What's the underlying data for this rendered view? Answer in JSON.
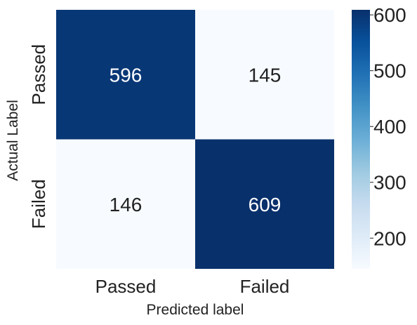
{
  "chart_data": {
    "type": "heatmap",
    "title": "",
    "xlabel": "Predicted label",
    "ylabel": "Actual Label",
    "x_categories": [
      "Passed",
      "Failed"
    ],
    "y_categories": [
      "Passed",
      "Failed"
    ],
    "values": [
      [
        596,
        145
      ],
      [
        146,
        609
      ]
    ],
    "colormap": "Blues",
    "color_range": [
      145,
      609
    ],
    "colorbar": {
      "ticks": [
        200,
        300,
        400,
        500,
        600
      ],
      "tick_labels": [
        "200",
        "300",
        "400",
        "500",
        "600"
      ],
      "placement": "right"
    },
    "colors": {
      "low": "#f7fbff",
      "high": "#08306b",
      "text_on_dark": "#ffffff",
      "text_on_light": "#222222"
    }
  }
}
